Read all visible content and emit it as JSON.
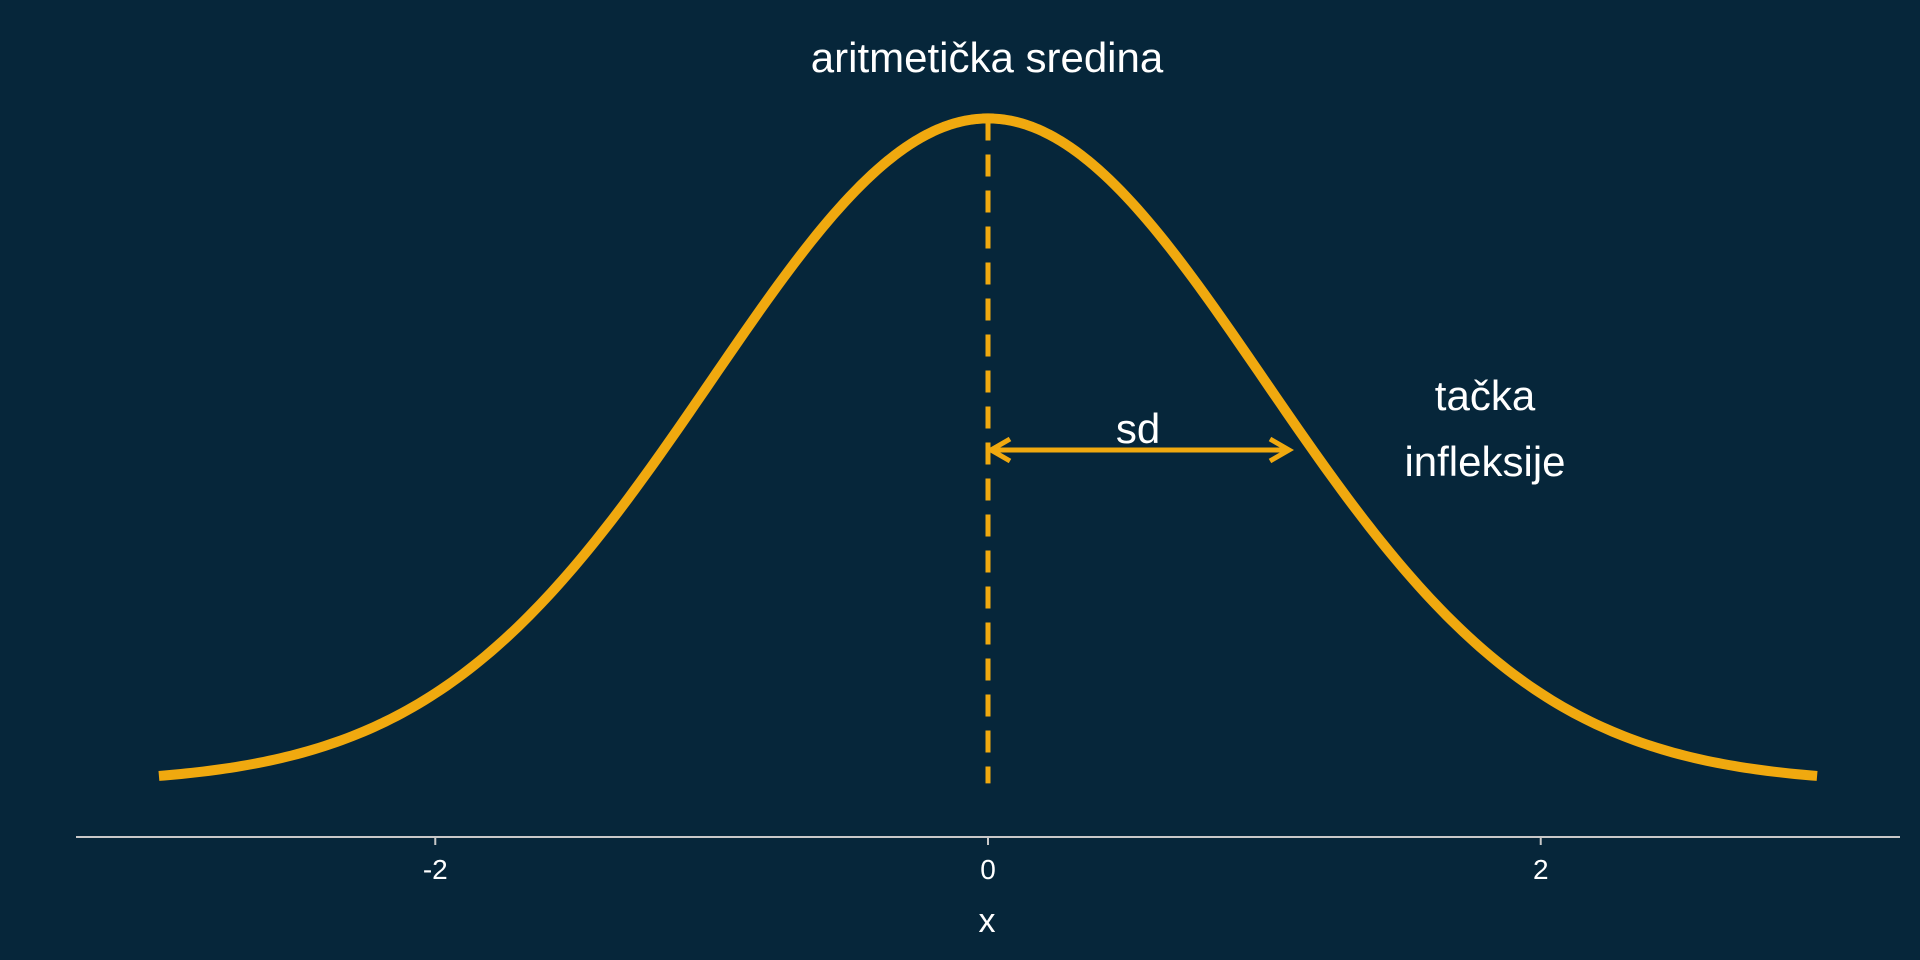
{
  "chart_data": {
    "type": "line",
    "title": "",
    "xlabel": "x",
    "ylabel": "",
    "xlim": [
      -3.3,
      3.3
    ],
    "ylim": [
      -0.07,
      0.44
    ],
    "x_ticks": [
      {
        "value": -2,
        "label": "-2"
      },
      {
        "value": 0,
        "label": "0"
      },
      {
        "value": 2,
        "label": "2"
      }
    ],
    "grid": false,
    "legend": "none",
    "series": [
      {
        "x": [
          -3.0,
          -2.75,
          -2.5,
          -2.25,
          -2.0,
          -1.75,
          -1.5,
          -1.25,
          -1.0,
          -0.75,
          -0.5,
          -0.25,
          0.0,
          0.25,
          0.5,
          0.75,
          1.0,
          1.25,
          1.5,
          1.75,
          2.0,
          2.25,
          2.5,
          2.75,
          3.0
        ],
        "y": [
          0.0044,
          0.0091,
          0.0175,
          0.0317,
          0.054,
          0.0863,
          0.1295,
          0.1826,
          0.242,
          0.3011,
          0.3521,
          0.3867,
          0.3989,
          0.3867,
          0.3521,
          0.3011,
          0.242,
          0.1826,
          0.1295,
          0.0863,
          0.054,
          0.0317,
          0.0175,
          0.0091,
          0.0044
        ]
      }
    ],
    "mean_line": {
      "x": 0,
      "y_from": 0,
      "y_to": 0.3989
    },
    "sd_arrow": {
      "x_from": 0,
      "x_to": 1.1,
      "y": 0.2
    },
    "annotations": {
      "mean": "aritmetička sredina",
      "sd": "sd",
      "inflection_line1": "tačka",
      "inflection_line2": "infleksije"
    },
    "colors": {
      "background": "#06263a",
      "curve": "#f0a90f",
      "axis": "#c8c8c8",
      "text": "#ffffff"
    }
  }
}
